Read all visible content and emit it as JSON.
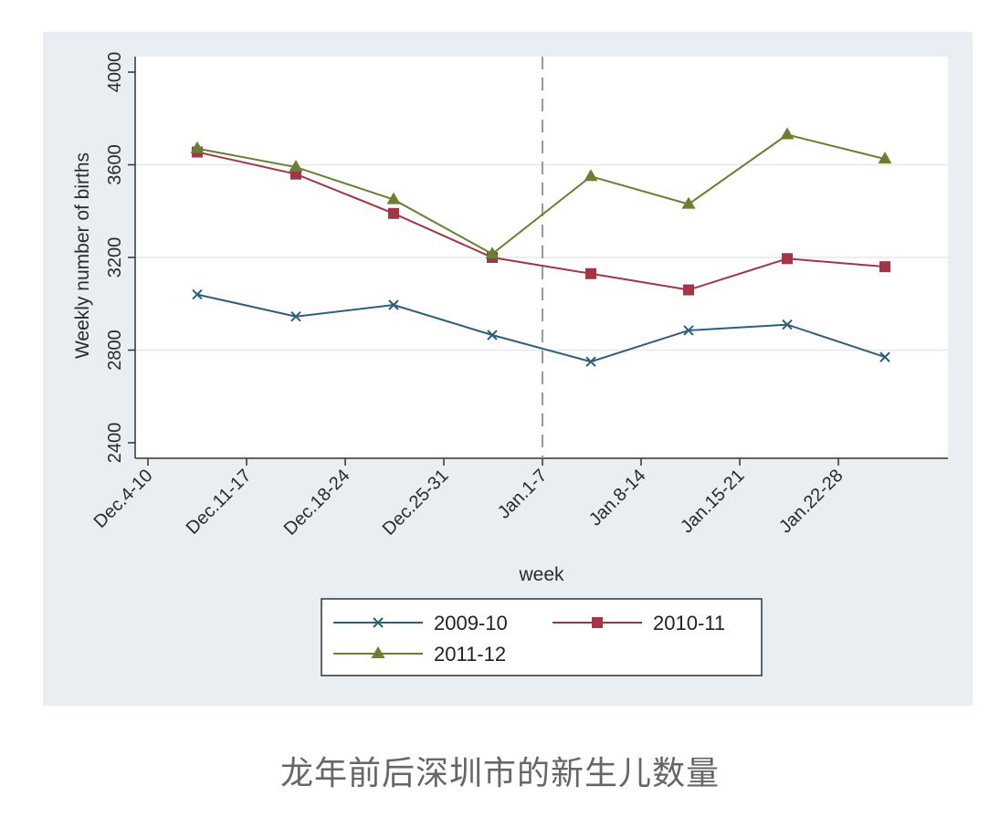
{
  "caption": "龙年前后深圳市的新生儿数量",
  "chart_data": {
    "type": "line",
    "title": "",
    "xlabel": "week",
    "ylabel": "Weekly number of births",
    "ylim": [
      2400,
      4000
    ],
    "yticks": [
      2400,
      2800,
      3200,
      3600,
      4000
    ],
    "xtick_labels": [
      "Dec.4-10",
      "Dec.11-17",
      "Dec.18-24",
      "Dec.25-31",
      "Jan.1-7",
      "Jan.8-14",
      "Jan.15-21",
      "Jan.22-28"
    ],
    "grid": true,
    "legend_position": "bottom",
    "series": [
      {
        "name": "2009-10",
        "marker": "x",
        "color": "#2e5f7a",
        "values": [
          3040,
          2945,
          2995,
          2865,
          2750,
          2885,
          2910,
          2770
        ]
      },
      {
        "name": "2010-11",
        "marker": "square",
        "color": "#a33546",
        "values": [
          3655,
          3560,
          3390,
          3200,
          3130,
          3060,
          3195,
          3160
        ]
      },
      {
        "name": "2011-12",
        "marker": "triangle",
        "color": "#6b7f33",
        "values": [
          3670,
          3590,
          3450,
          3215,
          3550,
          3430,
          3730,
          3625
        ]
      }
    ]
  }
}
